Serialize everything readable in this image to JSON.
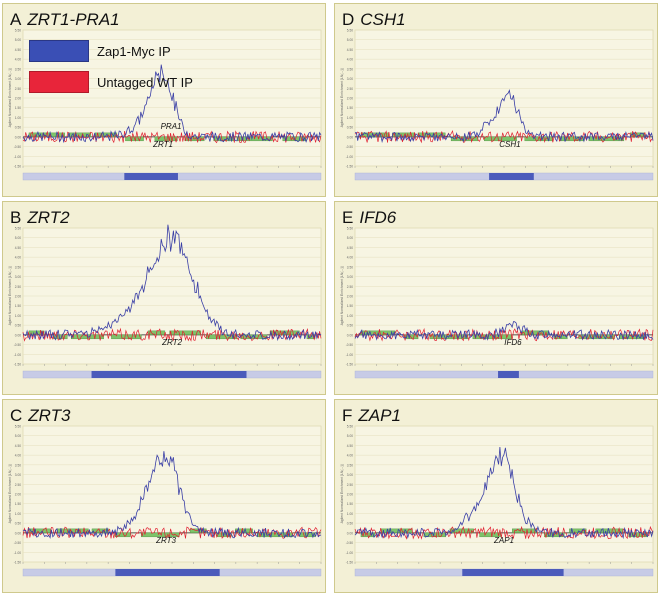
{
  "legend": {
    "entries": [
      {
        "label": "Zap1-Myc IP",
        "color": "#3a4fb5"
      },
      {
        "label": "Untagged WT IP",
        "color": "#e8253a"
      }
    ]
  },
  "colors": {
    "zap1_trace": "#3a3fa6",
    "untagged_trace": "#e02030",
    "background": "#f3f0d6",
    "gene_fill": "#7ec36a",
    "track_bar": "#c7cbe6",
    "track_highlight": "#4b5bbb"
  },
  "chart_data": [
    {
      "type": "line",
      "letter": "A",
      "title": "ZRT1-PRA1",
      "annotations": [
        "PRA1",
        "ZRT1"
      ],
      "ylim": [
        -1.5,
        5.5
      ],
      "ylabel": "Agilent Normalized Enrichment [LN(...)]",
      "series": [
        {
          "name": "Zap1-Myc IP",
          "peaks": [
            {
              "x": 0.47,
              "height": 2.6,
              "width": 0.035
            },
            {
              "x": 0.43,
              "height": 1.0,
              "width": 0.05
            }
          ]
        },
        {
          "name": "Untagged WT IP",
          "peaks": []
        }
      ],
      "highlight": [
        0.34,
        0.52
      ]
    },
    {
      "type": "line",
      "letter": "B",
      "title": "ZRT2",
      "annotations": [
        "ZRT2"
      ],
      "ylim": [
        -1.5,
        5.5
      ],
      "ylabel": "Agilent Normalized Enrichment [LN(...)]",
      "series": [
        {
          "name": "Zap1-Myc IP",
          "peaks": [
            {
              "x": 0.5,
              "height": 4.6,
              "width": 0.07
            },
            {
              "x": 0.38,
              "height": 0.9,
              "width": 0.08
            }
          ]
        },
        {
          "name": "Untagged WT IP",
          "peaks": []
        }
      ],
      "highlight": [
        0.23,
        0.75
      ]
    },
    {
      "type": "line",
      "letter": "C",
      "title": "ZRT3",
      "annotations": [
        "ZRT3"
      ],
      "ylim": [
        -1.5,
        5.5
      ],
      "ylabel": "Agilent Normalized Enrichment [LN(...)]",
      "series": [
        {
          "name": "Zap1-Myc IP",
          "peaks": [
            {
              "x": 0.48,
              "height": 3.5,
              "width": 0.045
            },
            {
              "x": 0.42,
              "height": 1.1,
              "width": 0.05
            }
          ]
        },
        {
          "name": "Untagged WT IP",
          "peaks": []
        }
      ],
      "highlight": [
        0.31,
        0.66
      ]
    },
    {
      "type": "line",
      "letter": "D",
      "title": "CSH1",
      "annotations": [
        "CSH1"
      ],
      "ylim": [
        -1.5,
        5.5
      ],
      "ylabel": "Agilent Normalized Enrichment [LN(...)]",
      "series": [
        {
          "name": "Zap1-Myc IP",
          "peaks": [
            {
              "x": 0.52,
              "height": 1.7,
              "width": 0.03
            },
            {
              "x": 0.47,
              "height": 0.7,
              "width": 0.04
            }
          ]
        },
        {
          "name": "Untagged WT IP",
          "peaks": []
        }
      ],
      "highlight": [
        0.45,
        0.6
      ]
    },
    {
      "type": "line",
      "letter": "E",
      "title": "IFD6",
      "annotations": [
        "IFD6"
      ],
      "ylim": [
        -1.5,
        5.5
      ],
      "ylabel": "Agilent Normalized Enrichment [LN(...)]",
      "series": [
        {
          "name": "Zap1-Myc IP",
          "peaks": [
            {
              "x": 0.53,
              "height": 0.5,
              "width": 0.03
            }
          ]
        },
        {
          "name": "Untagged WT IP",
          "peaks": []
        }
      ],
      "highlight": [
        0.48,
        0.55
      ]
    },
    {
      "type": "line",
      "letter": "F",
      "title": "ZAP1",
      "annotations": [
        "ZAP1"
      ],
      "ylim": [
        -1.5,
        5.5
      ],
      "ylabel": "Agilent Normalized Enrichment [LN(...)]",
      "series": [
        {
          "name": "Zap1-Myc IP",
          "peaks": [
            {
              "x": 0.5,
              "height": 3.2,
              "width": 0.04
            },
            {
              "x": 0.44,
              "height": 1.3,
              "width": 0.06
            }
          ]
        },
        {
          "name": "Untagged WT IP",
          "peaks": []
        }
      ],
      "highlight": [
        0.36,
        0.7
      ]
    }
  ]
}
